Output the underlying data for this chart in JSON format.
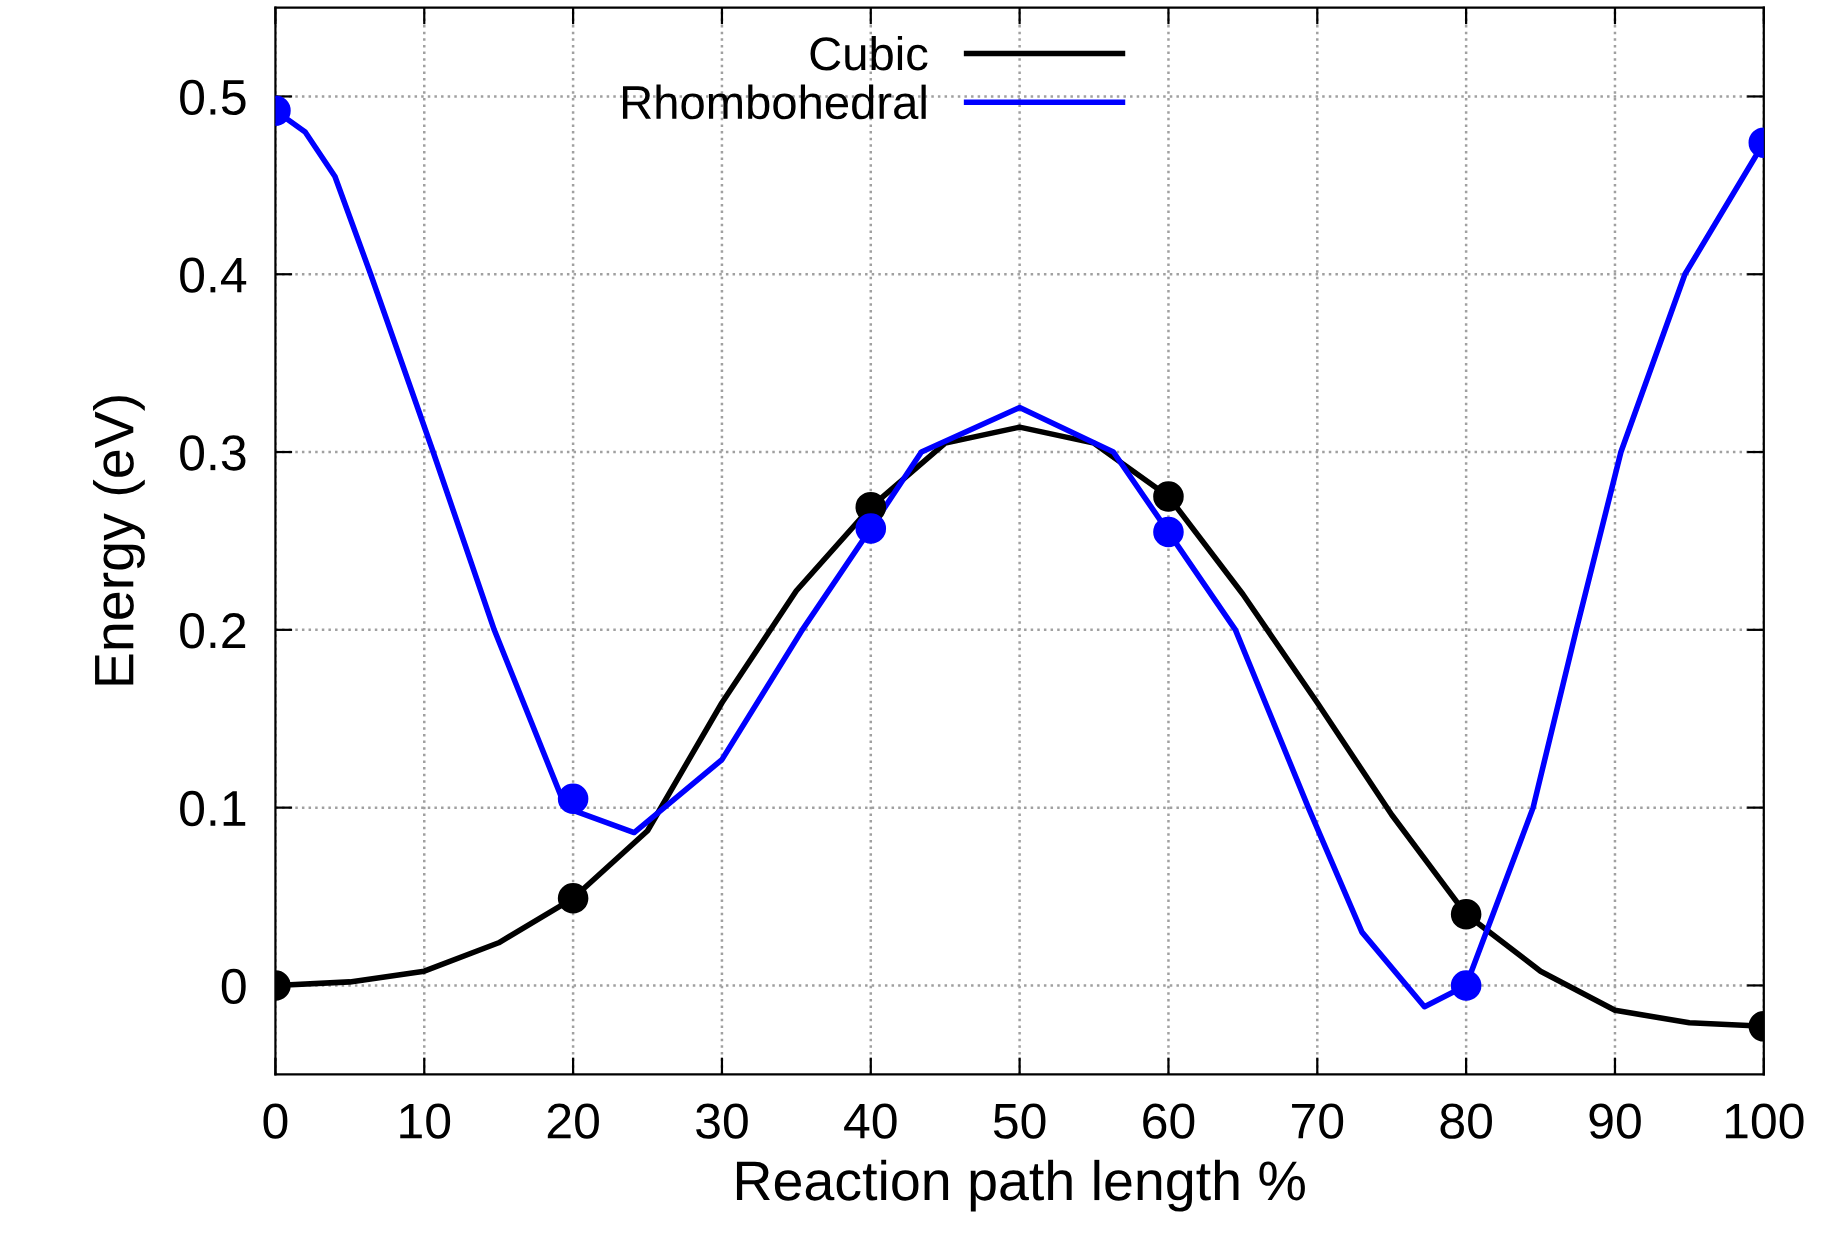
{
  "chart_data": {
    "type": "scatter",
    "xlabel": "Reaction path length %",
    "ylabel": "Energy (eV)",
    "series": [
      {
        "name": "Cubic",
        "color": "#000000",
        "type": "line",
        "x": [
          0,
          5,
          10,
          15,
          20,
          25,
          30,
          35,
          40,
          45,
          50,
          55,
          60,
          65,
          70,
          75,
          80,
          85,
          90,
          95,
          100
        ],
        "values": [
          0,
          0.002,
          0.008,
          0.024,
          0.049,
          0.087,
          0.159,
          0.222,
          0.269,
          0.305,
          0.314,
          0.305,
          0.275,
          0.22,
          0.159,
          0.096,
          0.04,
          0.008,
          -0.014,
          -0.021,
          -0.023
        ]
      },
      {
        "name": "Rhombohedral",
        "color": "#0000ff",
        "type": "line",
        "x": [
          0,
          2,
          4,
          6.4,
          10.6,
          14.7,
          19.5,
          24.1,
          30,
          35.4,
          40,
          43.4,
          50,
          56.3,
          60,
          64.5,
          69.4,
          73,
          77.2,
          80,
          84.5,
          87.4,
          90.4,
          94.7,
          100
        ],
        "values": [
          0.492,
          0.48,
          0.455,
          0.4,
          0.3,
          0.2,
          0.1,
          0.086,
          0.127,
          0.2,
          0.257,
          0.3,
          0.325,
          0.3,
          0.255,
          0.2,
          0.1,
          0.03,
          -0.012,
          0,
          0.1,
          0.2,
          0.3,
          0.4,
          0.474
        ]
      },
      {
        "color": "#000000",
        "marker": "circle",
        "x": [
          0,
          20,
          40,
          60,
          80,
          100
        ],
        "values": [
          0,
          0.049,
          0.269,
          0.275,
          0.04,
          -0.023
        ]
      },
      {
        "color": "#0000ff",
        "marker": "circle",
        "x": [
          0,
          20,
          40,
          60,
          80,
          100
        ],
        "values": [
          0.492,
          0.105,
          0.257,
          0.255,
          0,
          0.474
        ]
      }
    ],
    "xlim": [
      0,
      100
    ],
    "xticks": [
      0,
      10,
      20,
      30,
      40,
      50,
      60,
      70,
      80,
      90,
      100
    ],
    "ylim": [
      -0.05,
      0.55
    ],
    "yticks": [
      0,
      0.1,
      0.2,
      0.3,
      0.4,
      0.5
    ],
    "grid": true,
    "legend": "top",
    "line_style": "solid"
  }
}
